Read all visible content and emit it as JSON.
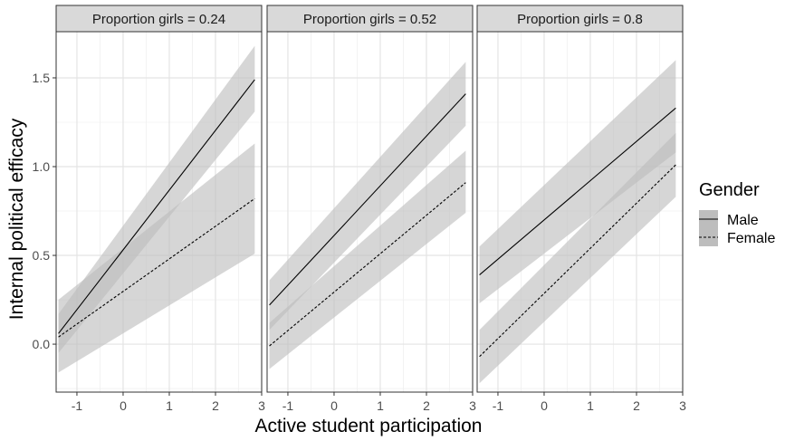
{
  "chart_data": {
    "type": "line",
    "xlabel": "Active student participation",
    "ylabel": "Internal political efficacy",
    "xlim": [
      -1.45,
      3.0
    ],
    "ylim": [
      -0.27,
      1.76
    ],
    "x_ticks": [
      "-1",
      "0",
      "1",
      "2",
      "3"
    ],
    "y_ticks": [
      "0.0",
      "0.5",
      "1.0",
      "1.5"
    ],
    "grid": true,
    "legend": {
      "title": "Gender",
      "position": "right",
      "entries": [
        {
          "label": "Male",
          "line": "solid"
        },
        {
          "label": "Female",
          "line": "dashed"
        }
      ]
    },
    "band_color": "#bdbdbd",
    "strip_color": "#d9d9d9",
    "panels": [
      {
        "strip": "Proportion girls = 0.24",
        "series": [
          {
            "name": "Male",
            "x": [
              -1.4,
              2.85
            ],
            "y": [
              0.06,
              1.49
            ],
            "lower": [
              -0.05,
              1.31
            ],
            "upper": [
              0.17,
              1.68
            ]
          },
          {
            "name": "Female",
            "x": [
              -1.4,
              2.85
            ],
            "y": [
              0.04,
              0.82
            ],
            "lower": [
              -0.16,
              0.51
            ],
            "upper": [
              0.25,
              1.13
            ]
          }
        ]
      },
      {
        "strip": "Proportion girls = 0.52",
        "series": [
          {
            "name": "Male",
            "x": [
              -1.4,
              2.85
            ],
            "y": [
              0.22,
              1.41
            ],
            "lower": [
              0.08,
              1.23
            ],
            "upper": [
              0.36,
              1.59
            ]
          },
          {
            "name": "Female",
            "x": [
              -1.4,
              2.85
            ],
            "y": [
              -0.01,
              0.91
            ],
            "lower": [
              -0.14,
              0.74
            ],
            "upper": [
              0.12,
              1.09
            ]
          }
        ]
      },
      {
        "strip": "Proportion girls = 0.8",
        "series": [
          {
            "name": "Male",
            "x": [
              -1.4,
              2.85
            ],
            "y": [
              0.39,
              1.33
            ],
            "lower": [
              0.23,
              1.08
            ],
            "upper": [
              0.55,
              1.6
            ]
          },
          {
            "name": "Female",
            "x": [
              -1.4,
              2.85
            ],
            "y": [
              -0.07,
              1.01
            ],
            "lower": [
              -0.22,
              0.83
            ],
            "upper": [
              0.08,
              1.19
            ]
          }
        ]
      }
    ]
  }
}
